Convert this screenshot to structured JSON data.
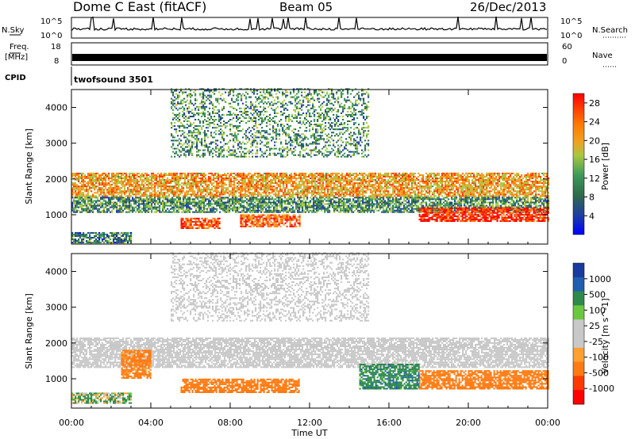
{
  "header": {
    "title": "Dome C East (fitACF)",
    "beam": "Beam 05",
    "date": "26/Dec/2013"
  },
  "nsky_panel": {
    "left_label": "N.Sky",
    "left_ticks": [
      "10^5",
      "10^0"
    ],
    "right_label": "N.Search",
    "right_ticks": [
      "10^5",
      "10^0"
    ]
  },
  "freq_panel": {
    "left_label_1": "Freq.",
    "left_label_2": "[MHz]",
    "left_ticks": [
      "18",
      "8"
    ],
    "right_label": "Nave",
    "right_ticks": [
      "60",
      "0"
    ]
  },
  "cpid": {
    "label": "CPID",
    "value": "twofsound 3501"
  },
  "colors": {
    "power_scale": [
      "#0000ff",
      "#1f3fa0",
      "#2e6b4a",
      "#3c9a5a",
      "#a8c840",
      "#f0a020",
      "#ff7a00",
      "#ff3a00",
      "#ff0000"
    ],
    "velocity_scale": [
      "#1a3aa0",
      "#1f5fb0",
      "#2e8a4a",
      "#6ac840",
      "#c8c8c8",
      "#c8c8c8",
      "#ffa030",
      "#ff7a10",
      "#ff3a00",
      "#ff0000"
    ]
  },
  "chart_data": [
    {
      "type": "heatmap",
      "title": "",
      "xlabel": "",
      "ylabel": "Slant Range [km]",
      "xlim": [
        "00:00",
        "00:00"
      ],
      "ylim": [
        180,
        4500
      ],
      "y_ticks": [
        "4000",
        "3000",
        "2000",
        "1000"
      ],
      "colorbar_label": "Power [dB]",
      "colorbar_ticks": [
        "28",
        "24",
        "20",
        "16",
        "12",
        "8",
        "4"
      ],
      "colorbar_range": [
        0,
        30
      ],
      "grid": false,
      "legend": "colorbar right",
      "echo_regions": [
        {
          "t0": 0.0,
          "t1": 24.0,
          "r0": 1500,
          "r1": 2150,
          "value": 20
        },
        {
          "t0": 0.0,
          "t1": 24.0,
          "r0": 1050,
          "r1": 1500,
          "value": 10
        },
        {
          "t0": 5.5,
          "t1": 7.5,
          "r0": 600,
          "r1": 900,
          "value": 26
        },
        {
          "t0": 8.5,
          "t1": 11.5,
          "r0": 650,
          "r1": 1000,
          "value": 24
        },
        {
          "t0": 17.5,
          "t1": 24.0,
          "r0": 800,
          "r1": 1200,
          "value": 28
        },
        {
          "t0": 0.0,
          "t1": 3.0,
          "r0": 200,
          "r1": 500,
          "value": 8
        },
        {
          "t0": 5.0,
          "t1": 15.0,
          "r0": 2600,
          "r1": 4500,
          "value": 10
        }
      ]
    },
    {
      "type": "heatmap",
      "title": "",
      "xlabel": "Time UT",
      "ylabel": "Slant Range [km]",
      "xlim": [
        "00:00",
        "00:00"
      ],
      "x_ticks": [
        "00:00",
        "04:00",
        "08:00",
        "12:00",
        "16:00",
        "20:00",
        "00:00"
      ],
      "ylim": [
        180,
        4500
      ],
      "y_ticks": [
        "4000",
        "3000",
        "2000",
        "1000"
      ],
      "colorbar_label": "Velocity [m s^-1]",
      "colorbar_ticks": [
        "1000",
        "500",
        "100",
        "25",
        "-25",
        "-100",
        "-500",
        "-1000"
      ],
      "grid": false,
      "legend": "colorbar right",
      "echo_regions": [
        {
          "t0": 0.0,
          "t1": 24.0,
          "r0": 1300,
          "r1": 2150,
          "value": 0
        },
        {
          "t0": 5.5,
          "t1": 11.5,
          "r0": 600,
          "r1": 1000,
          "value": -300
        },
        {
          "t0": 17.5,
          "t1": 24.0,
          "r0": 700,
          "r1": 1200,
          "value": -300
        },
        {
          "t0": 14.5,
          "t1": 17.5,
          "r0": 700,
          "r1": 1400,
          "value": 200
        },
        {
          "t0": 0.0,
          "t1": 3.0,
          "r0": 300,
          "r1": 600,
          "value": 60
        },
        {
          "t0": 2.5,
          "t1": 4.0,
          "r0": 1000,
          "r1": 1800,
          "value": -200
        },
        {
          "t0": 5.0,
          "t1": 15.0,
          "r0": 2600,
          "r1": 4500,
          "value": 0
        }
      ]
    }
  ]
}
